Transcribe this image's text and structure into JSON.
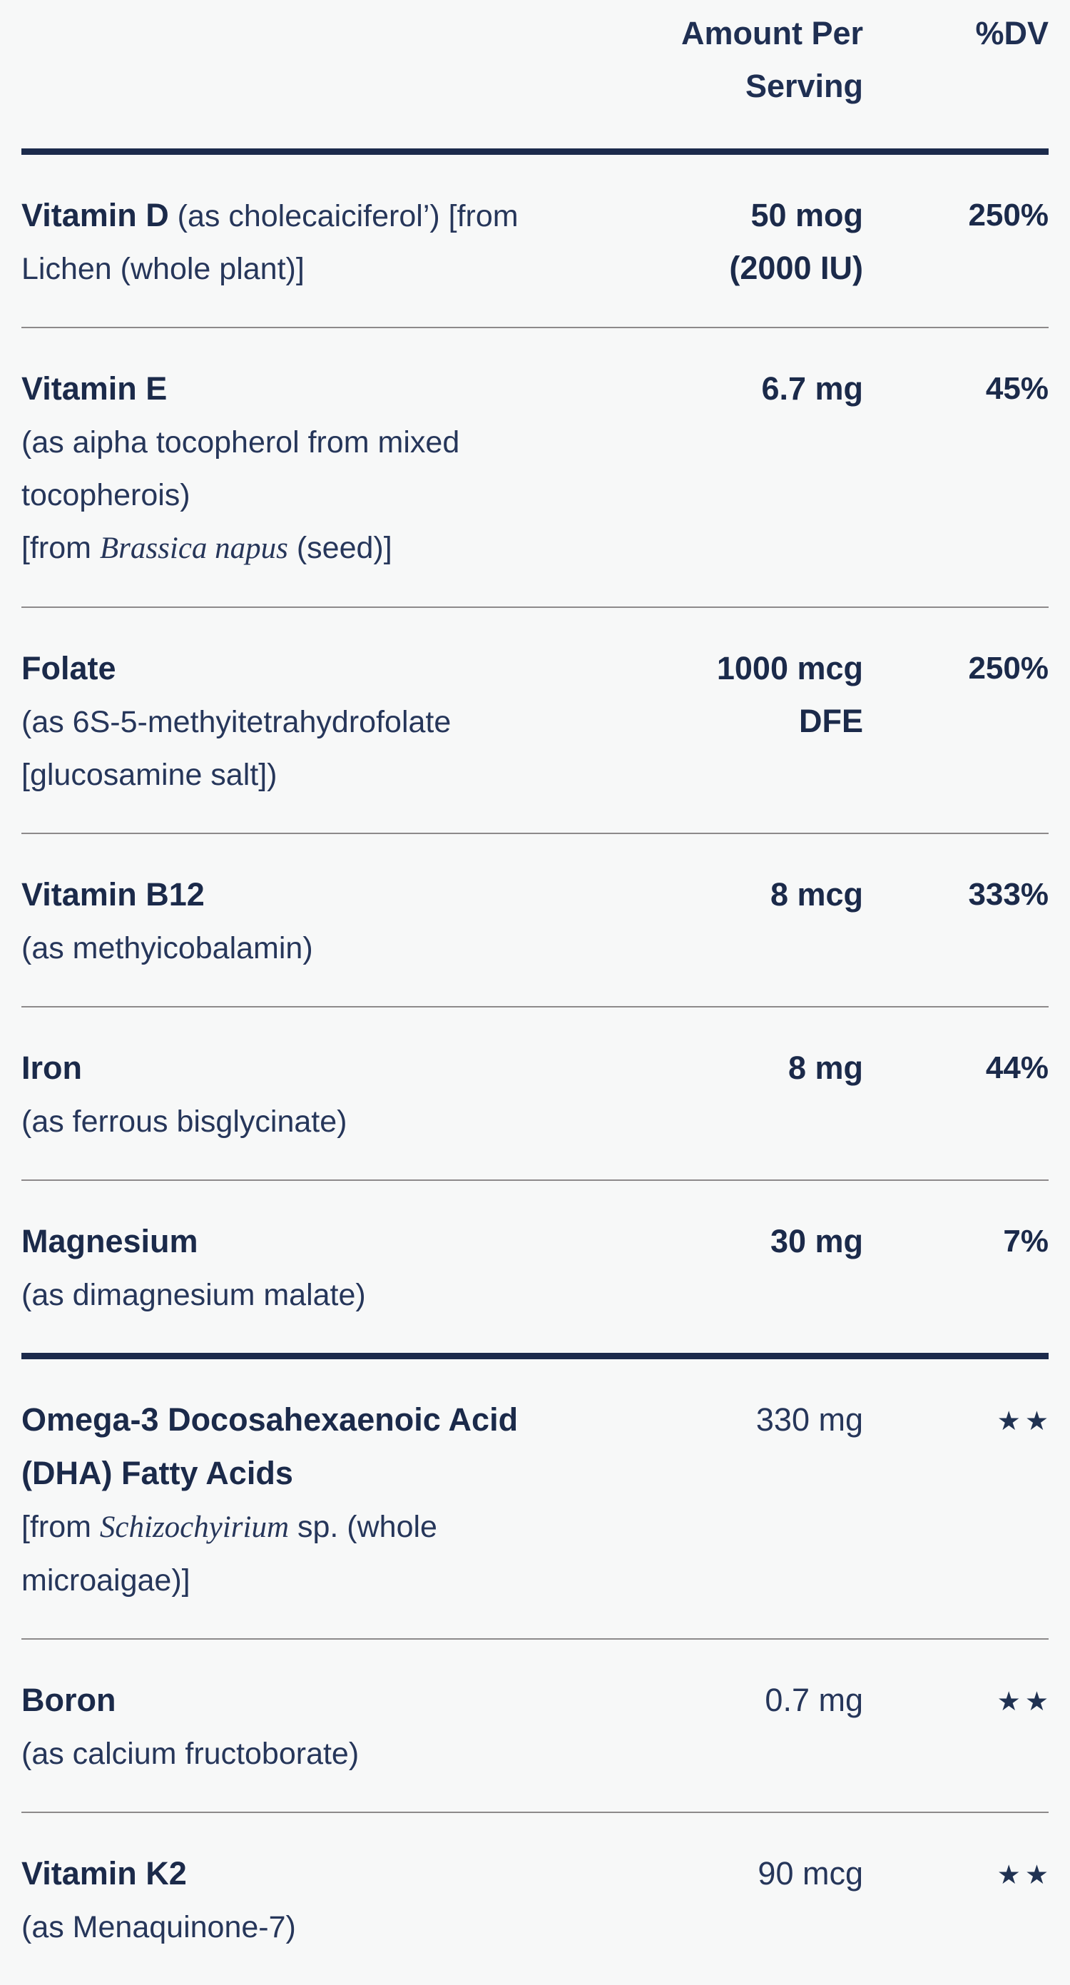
{
  "header": {
    "amount": "Amount Per Serving",
    "dv": "%DV"
  },
  "rows": [
    {
      "name": "Vitamin D",
      "name_rest": "(as cholecaiciferol’) [from",
      "line2": "Lichen (whole plant)]",
      "amount1": "50 mog",
      "amount2": "(2000 IU)",
      "dv": "250%"
    },
    {
      "name": "Vitamin E",
      "sub1": "(as aipha tocopherol from mixed",
      "sub2": "tocopherois)",
      "sub3_pre": "[from ",
      "sub3_italic": "Brassica napus",
      "sub3_post": " (seed)]",
      "amount1": "6.7 mg",
      "dv": "45%"
    },
    {
      "name": "Folate",
      "sub1": "(as 6S-5-methyitetrahydrofolate",
      "sub2": "[glucosamine salt])",
      "amount1": "1000 mcg",
      "amount2": "DFE",
      "dv": "250%"
    },
    {
      "name": "Vitamin B12",
      "sub1": "(as methyicobalamin)",
      "amount1": "8 mcg",
      "dv": "333%"
    },
    {
      "name": "Iron",
      "sub1": "(as ferrous bisglycinate)",
      "amount1": "8 mg",
      "dv": "44%"
    },
    {
      "name": "Magnesium",
      "sub1": "(as dimagnesium malate)",
      "amount1": "30 mg",
      "dv": "7%"
    },
    {
      "name_line1": "Omega-3 Docosahexaenoic Acid",
      "name_line2": "(DHA) Fatty Acids",
      "sub1_pre": "[from ",
      "sub1_italic": "Schizochyirium",
      "sub1_post": " sp. (whole",
      "sub2": "microaigae)]",
      "amount1": "330 mg",
      "dv_stars": "★★"
    },
    {
      "name": "Boron",
      "sub1": "(as calcium fructoborate)",
      "amount1": "0.7 mg",
      "dv_stars": "★★"
    },
    {
      "name": "Vitamin K2",
      "sub1": "(as Menaquinone-7)",
      "amount1": "90 mcg",
      "dv_stars": "★★"
    }
  ],
  "colors": {
    "background": "#f7f8f8",
    "text_navy": "#1b2a4a",
    "text_regular": "#26365a",
    "thick_rule": "#1c2b4c",
    "thin_rule": "#8d8a8b"
  }
}
